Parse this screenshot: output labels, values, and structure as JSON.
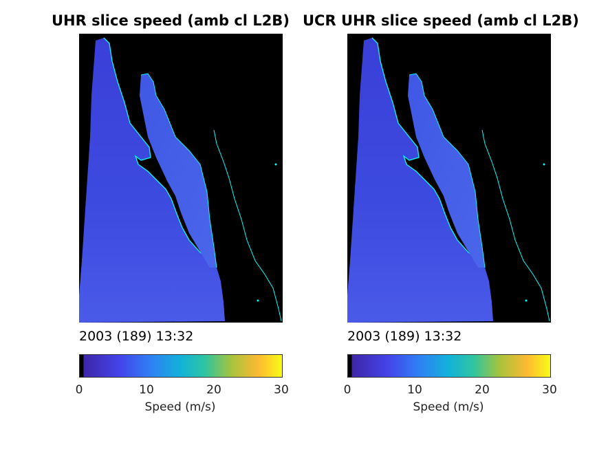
{
  "panels": [
    {
      "title": "UHR slice speed (amb cl L2B)",
      "timestamp": "2003 (189) 13:32",
      "colorbar": {
        "ticks": [
          "0",
          "10",
          "20",
          "30"
        ],
        "label": "Speed (m/s)"
      }
    },
    {
      "title": "UCR UHR slice speed (amb cl L2B)",
      "timestamp": "2003 (189) 13:32",
      "colorbar": {
        "ticks": [
          "0",
          "10",
          "20",
          "30"
        ],
        "label": "Speed (m/s)"
      }
    }
  ],
  "colors": {
    "background_land": "#000000",
    "ocean_speed_low": "#3c3ad6",
    "coastline": "#00ffff",
    "colormap_stops": [
      "#000000",
      "#3e26a8",
      "#2f6ef5",
      "#12b2d9",
      "#2fc5a0",
      "#a8c33c",
      "#fcb933",
      "#f9fb15"
    ]
  }
}
